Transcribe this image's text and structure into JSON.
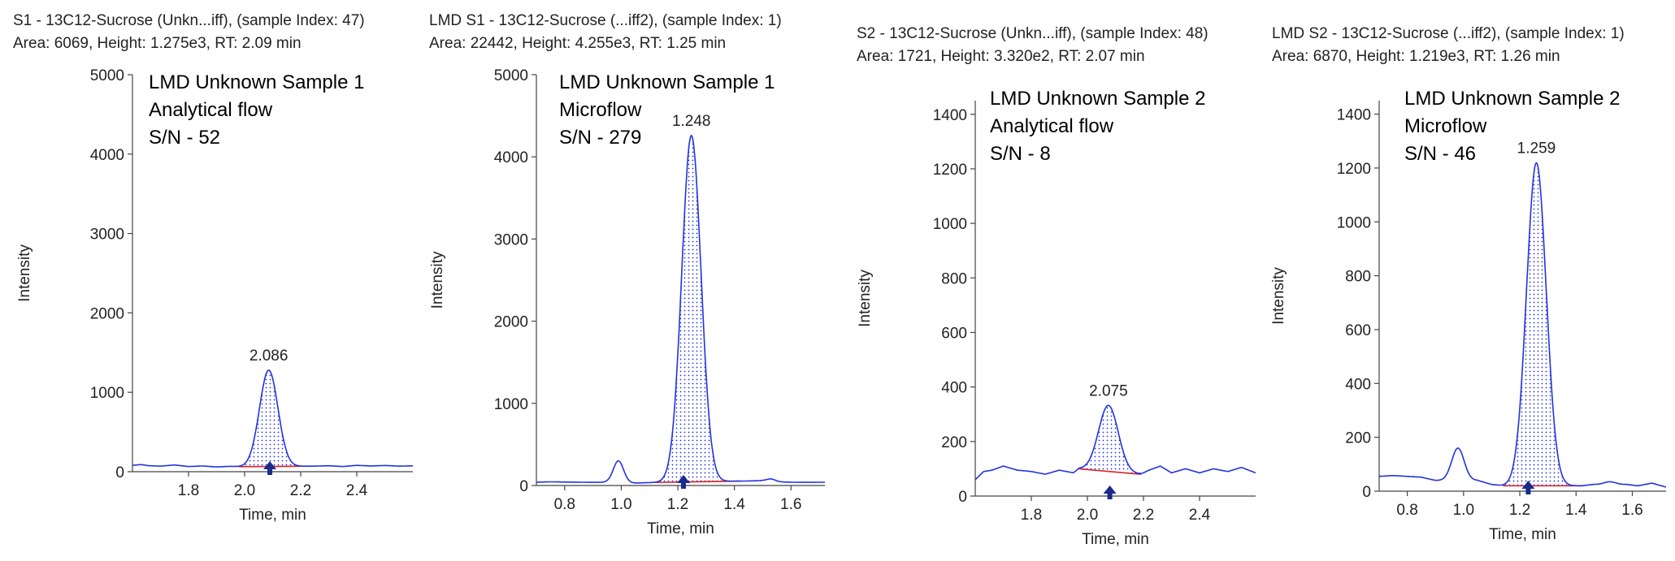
{
  "colors": {
    "trace": "#2233dd",
    "baseline": "#dd2222",
    "fill": "#2233dd",
    "marker": "#1a2a8a",
    "axis": "#444444"
  },
  "chart_data": [
    {
      "type": "line",
      "header": [
        "S1 - 13C12-Sucrose (Unkn...iff), (sample Index: 47)",
        "Area: 6069, Height: 1.275e3, RT: 2.09 min"
      ],
      "annotation": [
        "LMD Unknown Sample 1",
        "Analytical flow",
        "S/N - 52"
      ],
      "xlabel": "Time, min",
      "ylabel": "Intensity",
      "xlim": [
        1.6,
        2.6
      ],
      "ylim": [
        0,
        5000
      ],
      "xticks": [
        1.8,
        2.0,
        2.2,
        2.4
      ],
      "xtick_labels": [
        "1.8",
        "2.0",
        "2.2",
        "2.4"
      ],
      "yticks": [
        0,
        1000,
        2000,
        3000,
        4000,
        5000
      ],
      "ytick_labels": [
        "0",
        "1000",
        "2000",
        "3000",
        "4000",
        "5000"
      ],
      "peak": {
        "label": "2.086",
        "rt": 2.086,
        "height": 1275,
        "width": 0.033,
        "start": 1.98,
        "end": 2.2
      },
      "baseline_level": 60,
      "noise": [
        [
          1.6,
          80
        ],
        [
          1.63,
          90
        ],
        [
          1.66,
          75
        ],
        [
          1.7,
          70
        ],
        [
          1.75,
          85
        ],
        [
          1.8,
          65
        ],
        [
          1.85,
          72
        ],
        [
          1.9,
          60
        ],
        [
          1.95,
          68
        ],
        [
          2.0,
          60
        ],
        [
          2.25,
          70
        ],
        [
          2.3,
          75
        ],
        [
          2.35,
          65
        ],
        [
          2.4,
          80
        ],
        [
          2.45,
          72
        ],
        [
          2.5,
          78
        ],
        [
          2.55,
          70
        ],
        [
          2.6,
          74
        ]
      ],
      "secondary_peaks": [],
      "marker_x": 2.09
    },
    {
      "type": "line",
      "header": [
        "LMD S1 - 13C12-Sucrose (...iff2), (sample Index: 1)",
        "Area: 22442, Height: 4.255e3, RT: 1.25 min"
      ],
      "annotation": [
        "LMD Unknown Sample 1",
        "Microflow",
        "S/N - 279"
      ],
      "xlabel": "Time, min",
      "ylabel": "Intensity",
      "xlim": [
        0.7,
        1.72
      ],
      "ylim": [
        0,
        5000
      ],
      "xticks": [
        0.8,
        1.0,
        1.2,
        1.4,
        1.6
      ],
      "xtick_labels": [
        "0.8",
        "1.0",
        "1.2",
        "1.4",
        "1.6"
      ],
      "yticks": [
        0,
        1000,
        2000,
        3000,
        4000,
        5000
      ],
      "ytick_labels": [
        "0",
        "1000",
        "2000",
        "3000",
        "4000",
        "5000"
      ],
      "peak": {
        "label": "1.248",
        "rt": 1.248,
        "height": 4255,
        "width": 0.034,
        "start": 1.12,
        "end": 1.42
      },
      "baseline_level": 40,
      "noise": [
        [
          0.7,
          40
        ],
        [
          0.75,
          45
        ],
        [
          0.8,
          42
        ],
        [
          0.85,
          40
        ],
        [
          0.9,
          38
        ],
        [
          0.95,
          40
        ],
        [
          1.05,
          30
        ],
        [
          1.1,
          35
        ],
        [
          1.15,
          40
        ],
        [
          1.45,
          55
        ],
        [
          1.5,
          60
        ],
        [
          1.55,
          45
        ],
        [
          1.6,
          40
        ],
        [
          1.65,
          38
        ],
        [
          1.72,
          40
        ]
      ],
      "secondary_peaks": [
        {
          "rt": 0.99,
          "height": 300,
          "width": 0.018
        },
        {
          "rt": 1.53,
          "height": 80,
          "width": 0.015
        }
      ],
      "marker_x": 1.22
    },
    {
      "type": "line",
      "header": [
        "S2 - 13C12-Sucrose (Unkn...iff), (sample Index: 48)",
        "Area: 1721, Height: 3.320e2, RT: 2.07 min"
      ],
      "annotation": [
        "LMD Unknown Sample 2",
        "Analytical flow",
        "S/N - 8"
      ],
      "xlabel": "Time, min",
      "ylabel": "Intensity",
      "xlim": [
        1.6,
        2.6
      ],
      "ylim": [
        0,
        1450
      ],
      "xticks": [
        1.8,
        2.0,
        2.2,
        2.4
      ],
      "xtick_labels": [
        "1.8",
        "2.0",
        "2.2",
        "2.4"
      ],
      "yticks": [
        0,
        200,
        400,
        600,
        800,
        1000,
        1200,
        1400
      ],
      "ytick_labels": [
        "0",
        "200",
        "400",
        "600",
        "800",
        "1000",
        "1200",
        "1400"
      ],
      "peak": {
        "label": "2.075",
        "rt": 2.075,
        "height": 332,
        "width": 0.035,
        "start": 1.97,
        "end": 2.19
      },
      "baseline_level": 90,
      "noise": [
        [
          1.6,
          60
        ],
        [
          1.63,
          90
        ],
        [
          1.66,
          95
        ],
        [
          1.7,
          110
        ],
        [
          1.75,
          95
        ],
        [
          1.8,
          90
        ],
        [
          1.85,
          80
        ],
        [
          1.9,
          95
        ],
        [
          1.95,
          85
        ],
        [
          1.97,
          100
        ],
        [
          2.19,
          80
        ],
        [
          2.22,
          95
        ],
        [
          2.26,
          110
        ],
        [
          2.3,
          85
        ],
        [
          2.35,
          100
        ],
        [
          2.4,
          85
        ],
        [
          2.45,
          100
        ],
        [
          2.5,
          90
        ],
        [
          2.55,
          105
        ],
        [
          2.6,
          85
        ]
      ],
      "secondary_peaks": [],
      "marker_x": 2.08
    },
    {
      "type": "line",
      "header": [
        "LMD S2 - 13C12-Sucrose (...iff2), (sample Index: 1)",
        "Area: 6870, Height: 1.219e3, RT: 1.26 min"
      ],
      "annotation": [
        "LMD Unknown Sample 2",
        "Microflow",
        "S/N - 46"
      ],
      "xlabel": "Time, min",
      "ylabel": "Intensity",
      "xlim": [
        0.7,
        1.72
      ],
      "ylim": [
        0,
        1450
      ],
      "xticks": [
        0.8,
        1.0,
        1.2,
        1.4,
        1.6
      ],
      "xtick_labels": [
        "0.8",
        "1.0",
        "1.2",
        "1.4",
        "1.6"
      ],
      "yticks": [
        0,
        200,
        400,
        600,
        800,
        1000,
        1200,
        1400
      ],
      "ytick_labels": [
        "0",
        "200",
        "400",
        "600",
        "800",
        "1000",
        "1200",
        "1400"
      ],
      "peak": {
        "label": "1.259",
        "rt": 1.259,
        "height": 1219,
        "width": 0.035,
        "start": 1.14,
        "end": 1.42
      },
      "baseline_level": 20,
      "noise": [
        [
          0.7,
          55
        ],
        [
          0.75,
          58
        ],
        [
          0.8,
          55
        ],
        [
          0.85,
          52
        ],
        [
          0.9,
          40
        ],
        [
          1.05,
          40
        ],
        [
          1.1,
          25
        ],
        [
          1.14,
          20
        ],
        [
          1.42,
          20
        ],
        [
          1.46,
          25
        ],
        [
          1.58,
          25
        ],
        [
          1.62,
          20
        ],
        [
          1.67,
          30
        ],
        [
          1.72,
          15
        ]
      ],
      "secondary_peaks": [
        {
          "rt": 0.98,
          "height": 160,
          "width": 0.022
        },
        {
          "rt": 1.52,
          "height": 35,
          "width": 0.02
        }
      ],
      "marker_x": 1.23
    }
  ]
}
